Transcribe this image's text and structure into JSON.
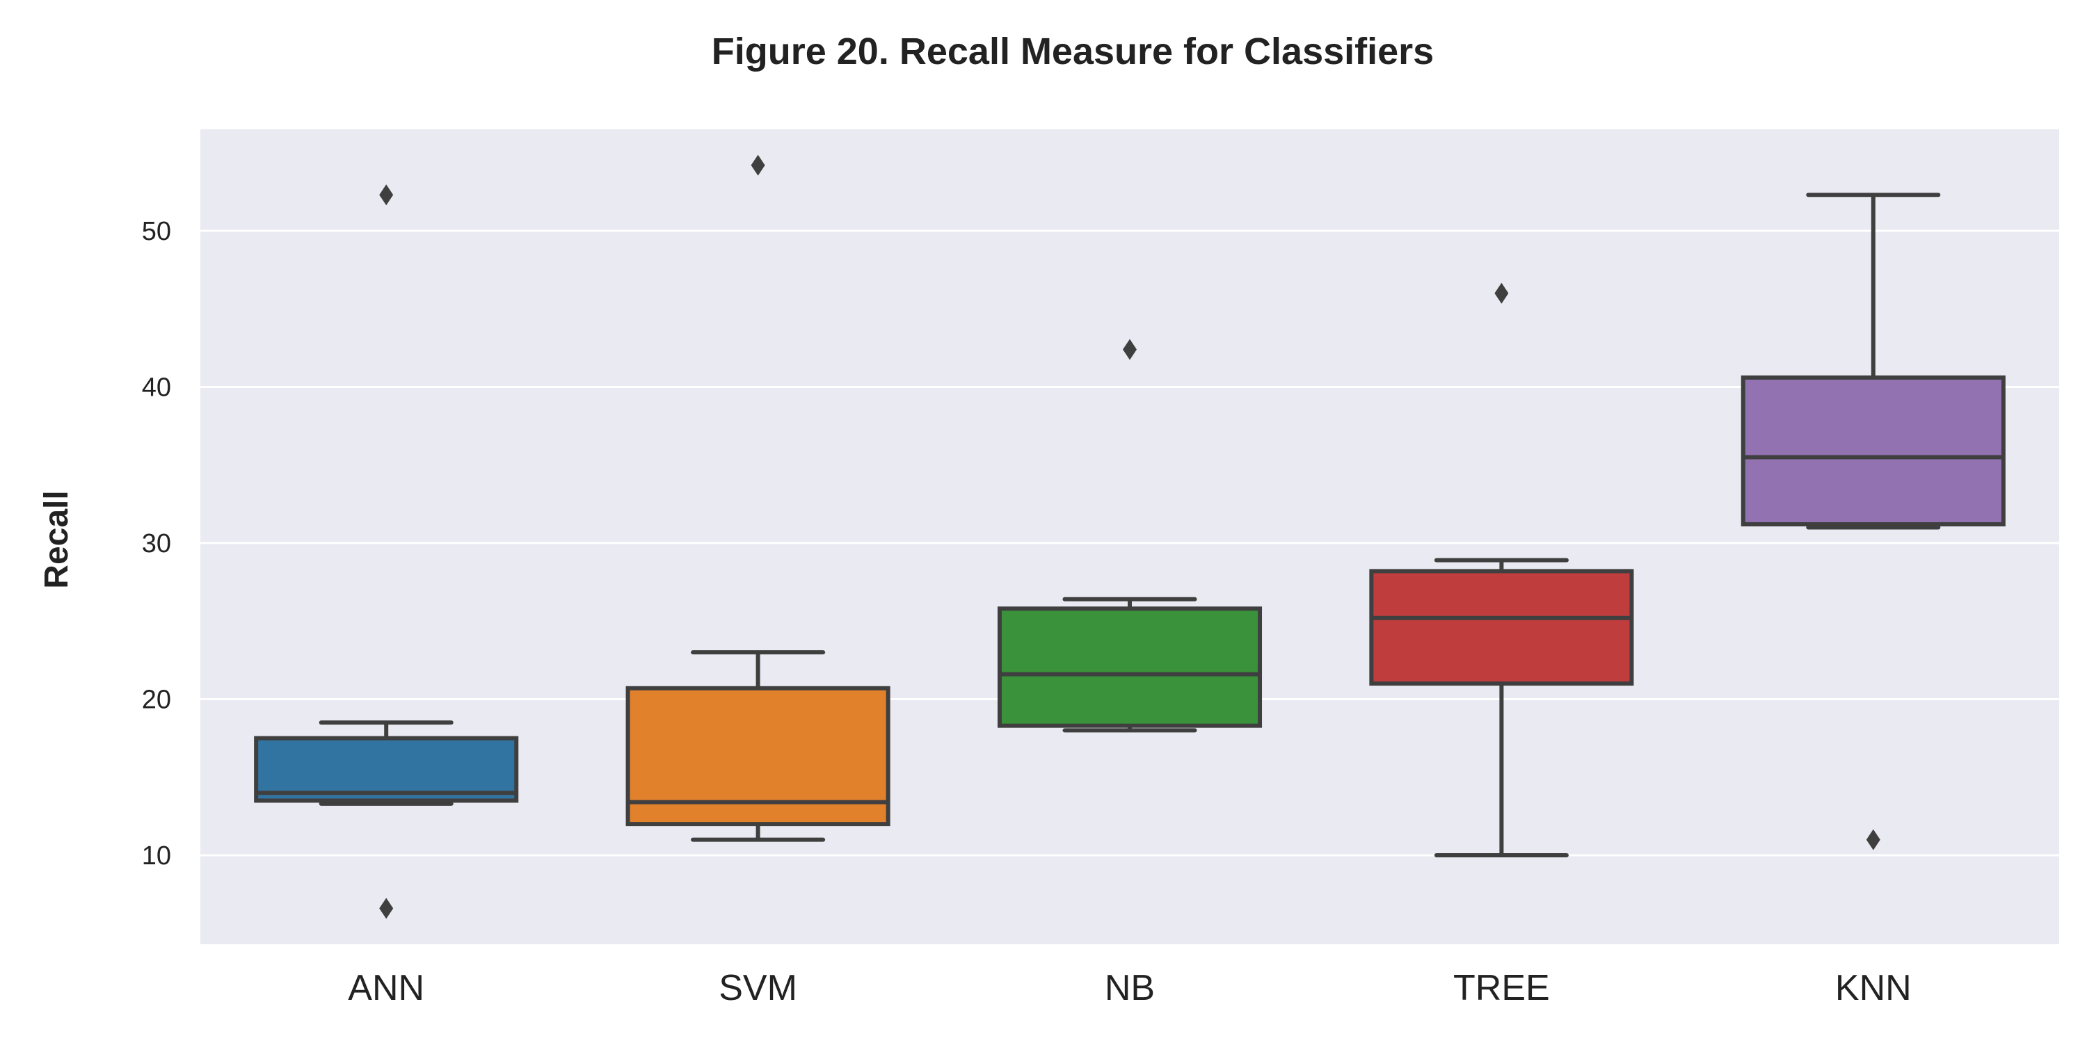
{
  "chart_data": {
    "type": "boxplot",
    "title": "Figure 20.  Recall Measure for Classifiers",
    "xlabel": "",
    "ylabel": "Recall",
    "ylim": [
      4.3,
      56.5
    ],
    "yticks": [
      10,
      20,
      30,
      40,
      50
    ],
    "grid": true,
    "legend": "none",
    "background_color": "#eaeaf2",
    "line_color": "#3f3f3f",
    "categories": [
      "ANN",
      "SVM",
      "NB",
      "TREE",
      "KNN"
    ],
    "boxes": [
      {
        "category": "ANN",
        "color": "#3274a1",
        "whisker_low": 13.3,
        "q1": 13.5,
        "median": 14.0,
        "q3": 17.5,
        "whisker_high": 18.5,
        "outliers": [
          52.3,
          6.6
        ]
      },
      {
        "category": "SVM",
        "color": "#e1812c",
        "whisker_low": 11.0,
        "q1": 12.0,
        "median": 13.4,
        "q3": 20.7,
        "whisker_high": 23.0,
        "outliers": [
          54.2
        ]
      },
      {
        "category": "NB",
        "color": "#3a923a",
        "whisker_low": 18.0,
        "q1": 18.3,
        "median": 21.6,
        "q3": 25.8,
        "whisker_high": 26.4,
        "outliers": [
          42.4
        ]
      },
      {
        "category": "TREE",
        "color": "#c03d3e",
        "whisker_low": 10.0,
        "q1": 21.0,
        "median": 25.2,
        "q3": 28.2,
        "whisker_high": 28.9,
        "outliers": [
          46.0
        ]
      },
      {
        "category": "KNN",
        "color": "#9372b2",
        "whisker_low": 31.0,
        "q1": 31.2,
        "median": 35.5,
        "q3": 40.6,
        "whisker_high": 52.3,
        "outliers": [
          11.0
        ]
      }
    ]
  }
}
